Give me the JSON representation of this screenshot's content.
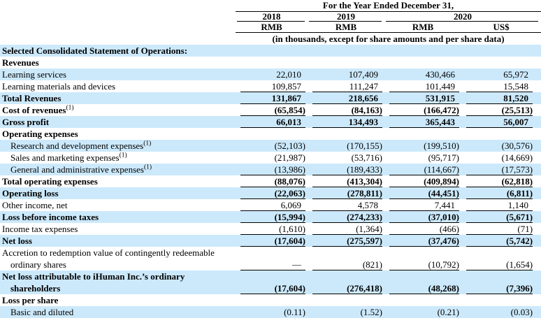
{
  "table": {
    "header": {
      "spanner": "For the Year Ended December 31,",
      "years": [
        "2018",
        "2019",
        "2020"
      ],
      "currencies": [
        "RMB",
        "RMB",
        "RMB",
        "US$"
      ],
      "note": "(in thousands, except for share amounts and per share data)"
    },
    "colors": {
      "stripe": "#cce9fb",
      "rule": "#000000",
      "text": "#000000"
    },
    "rows": [
      {
        "label": "Selected Consolidated Statement of Operations:",
        "bold": true,
        "stripe": true,
        "values": []
      },
      {
        "label": "Revenues",
        "bold": true,
        "stripe": false,
        "values": []
      },
      {
        "label": "Learning services",
        "stripe": true,
        "values": [
          "22,010",
          "107,409",
          "430,466",
          "65,972"
        ],
        "underline": false
      },
      {
        "label": "Learning materials and devices",
        "stripe": false,
        "values": [
          "109,857",
          "111,247",
          "101,449",
          "15,548"
        ],
        "underline": true
      },
      {
        "label": "Total Revenues",
        "bold": true,
        "stripe": true,
        "values": [
          "131,867",
          "218,656",
          "531,915",
          "81,520"
        ],
        "underline": true
      },
      {
        "label": "Cost of revenues",
        "sup": "(1)",
        "bold": true,
        "stripe": false,
        "values": [
          "(65,854)",
          "(84,163)",
          "(166,472)",
          "(25,513)"
        ],
        "underline": true
      },
      {
        "label": "Gross profit",
        "bold": true,
        "stripe": true,
        "values": [
          "66,013",
          "134,493",
          "365,443",
          "56,007"
        ],
        "underline": true
      },
      {
        "label": "Operating expenses",
        "bold": true,
        "stripe": false,
        "values": []
      },
      {
        "label": "Research and development expenses",
        "sup": "(1)",
        "indent": true,
        "stripe": true,
        "values": [
          "(52,103)",
          "(170,155)",
          "(199,510)",
          "(30,576)"
        ],
        "underline": false
      },
      {
        "label": "Sales and marketing expenses",
        "sup": "(1)",
        "indent": true,
        "stripe": false,
        "values": [
          "(21,987)",
          "(53,716)",
          "(95,717)",
          "(14,669)"
        ],
        "underline": false
      },
      {
        "label": "General and administrative expenses",
        "sup": "(1)",
        "indent": true,
        "stripe": true,
        "values": [
          "(13,986)",
          "(189,433)",
          "(114,667)",
          "(17,573)"
        ],
        "underline": true
      },
      {
        "label": "Total operating expenses",
        "bold": true,
        "stripe": false,
        "values": [
          "(88,076)",
          "(413,304)",
          "(409,894)",
          "(62,818)"
        ],
        "underline": true
      },
      {
        "label": "Operating loss",
        "bold": true,
        "stripe": true,
        "values": [
          "(22,063)",
          "(278,811)",
          "(44,451)",
          "(6,811)"
        ],
        "underline": true
      },
      {
        "label": "Other income, net",
        "stripe": false,
        "values": [
          "6,069",
          "4,578",
          "7,441",
          "1,140"
        ],
        "underline": true
      },
      {
        "label": "Loss before income taxes",
        "bold": true,
        "stripe": true,
        "values": [
          "(15,994)",
          "(274,233)",
          "(37,010)",
          "(5,671)"
        ],
        "underline": true
      },
      {
        "label": "Income tax expenses",
        "stripe": false,
        "values": [
          "(1,610)",
          "(1,364)",
          "(466)",
          "(71)"
        ],
        "underline": true
      },
      {
        "label": "Net loss",
        "bold": true,
        "stripe": true,
        "values": [
          "(17,604)",
          "(275,597)",
          "(37,476)",
          "(5,742)"
        ],
        "underline": true
      },
      {
        "label": "Accretion to redemption value of contingently redeemable",
        "label2": "ordinary shares",
        "stripe": false,
        "values": [
          "—",
          "(821)",
          "(10,792)",
          "(1,654)"
        ],
        "underline": true
      },
      {
        "label": "Net loss attributable to iHuman Inc.’s ordinary",
        "label2": "shareholders",
        "bold": true,
        "stripe": true,
        "values": [
          "(17,604)",
          "(276,418)",
          "(48,268)",
          "(7,396)"
        ],
        "underline": true
      },
      {
        "label": "Loss per share",
        "bold": true,
        "stripe": false,
        "values": []
      },
      {
        "label": "Basic and diluted",
        "indent": true,
        "stripe": true,
        "values": [
          "(0.11)",
          "(1.52)",
          "(0.21)",
          "(0.03)"
        ],
        "underline": false
      }
    ]
  }
}
